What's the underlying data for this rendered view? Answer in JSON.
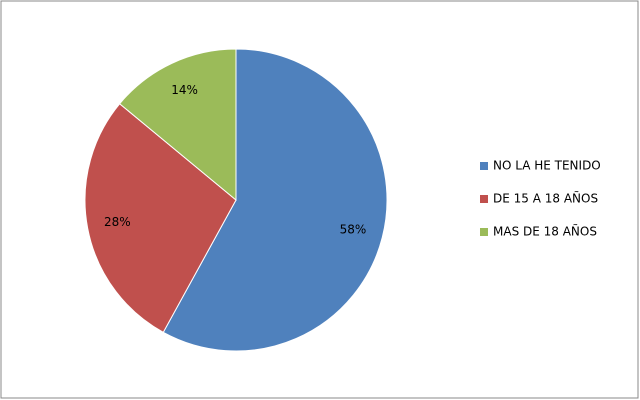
{
  "chart_data": {
    "type": "pie",
    "categories": [
      "NO LA HE TENIDO",
      "DE 15 A 18 AÑOS",
      "MAS DE 18 AÑOS"
    ],
    "values": [
      58,
      28,
      14
    ],
    "value_labels": [
      "58%",
      "28%",
      "14%"
    ],
    "colors": [
      "#4f81bd",
      "#c0504d",
      "#9bbb59"
    ],
    "legend": "right"
  }
}
